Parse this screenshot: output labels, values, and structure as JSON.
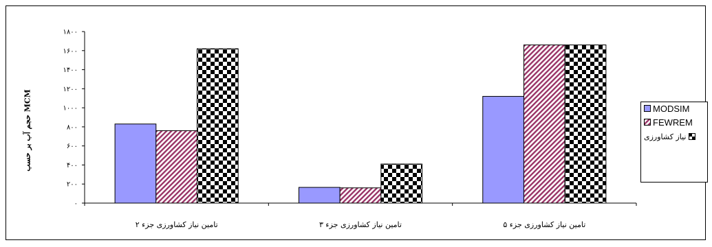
{
  "chart_data": {
    "type": "bar",
    "title": "",
    "xlabel": "",
    "ylabel": "حجم آب بر حسب MCM",
    "categories": [
      "تامین نیاز کشاورزی جزء ۲",
      "تامین نیاز کشاورزی جزء ۳",
      "تامین نیاز کشاورزی جزء ۵"
    ],
    "series": [
      {
        "name": "MODSIM",
        "values": [
          830,
          165,
          1120
        ]
      },
      {
        "name": "FEWREM",
        "values": [
          760,
          160,
          1660
        ]
      },
      {
        "name": "نیاز کشاورزی",
        "values": [
          1620,
          410,
          1660
        ]
      }
    ],
    "ylim": [
      0,
      1800
    ],
    "yticks": [
      0,
      200,
      400,
      600,
      800,
      1000,
      1200,
      1400,
      1600,
      1800
    ],
    "ytick_labels": [
      "۰",
      "۲۰۰",
      "۴۰۰",
      "۶۰۰",
      "۸۰۰",
      "۱۰۰۰",
      "۱۲۰۰",
      "۱۴۰۰",
      "۱۶۰۰",
      "۱۸۰۰"
    ],
    "grid": false,
    "legend": "right",
    "colors": {
      "modsim": "#9999ff",
      "fewrem_fill": "#ffffff",
      "fewrem_stripe": "#993366",
      "demand_a": "#000000",
      "demand_b": "#ffffff"
    }
  }
}
